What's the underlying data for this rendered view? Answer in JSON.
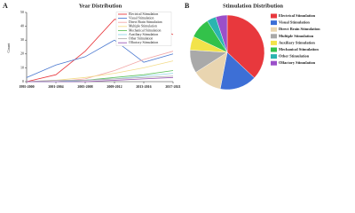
{
  "chart_data": [
    {
      "type": "line",
      "label": "A",
      "title": "Year Distribution",
      "ylabel": "Count",
      "categories": [
        "1995-2000",
        "2001-2004",
        "2005-2008",
        "2009-2012",
        "2013-2016",
        "2017-2021"
      ],
      "ylim": [
        0,
        50
      ],
      "yticks": [
        0,
        10,
        20,
        30,
        40,
        50
      ],
      "legend": "upper right",
      "series": [
        {
          "name": "Electrical Stimulation",
          "color": "#e8383d",
          "values": [
            0,
            5,
            22,
            45,
            44,
            34
          ]
        },
        {
          "name": "Visual Stimulation",
          "color": "#4a78d0",
          "values": [
            3,
            12,
            18,
            30,
            14,
            20
          ]
        },
        {
          "name": "Direct Brain Stimulation",
          "color": "#f2a7a7",
          "values": [
            0,
            0,
            2,
            8,
            16,
            22
          ]
        },
        {
          "name": "Multiple Stimulation",
          "color": "#f3dc8a",
          "values": [
            0,
            1,
            3,
            6,
            10,
            15
          ]
        },
        {
          "name": "Mechanical Stimulation",
          "color": "#5cc05c",
          "values": [
            0,
            0,
            1,
            3,
            5,
            8
          ]
        },
        {
          "name": "Auxiliary Stimulation",
          "color": "#8fd3e8",
          "values": [
            0,
            0,
            1,
            2,
            4,
            6
          ]
        },
        {
          "name": "Other Stimulation",
          "color": "#b0b0b0",
          "values": [
            0,
            1,
            1,
            2,
            3,
            4
          ]
        },
        {
          "name": "Olfactory Stimulation",
          "color": "#9b59b6",
          "values": [
            0,
            0,
            0,
            1,
            2,
            3
          ]
        }
      ]
    },
    {
      "type": "pie",
      "label": "B",
      "title": "Stimulation Distribution",
      "categories": [
        "Electrical Stimulation",
        "Visual Stimulation",
        "Direct Brain Stimulation",
        "Multiple Stimulation",
        "Auxiliary Stimulation",
        "Mechanical Stimulation",
        "Other Stimulation",
        "Olfactory Stimulation"
      ],
      "values": [
        37,
        16,
        13,
        10,
        6,
        9,
        4,
        5
      ],
      "colors": [
        "#e8383d",
        "#3d6fd6",
        "#e9d5b0",
        "#a9a9a9",
        "#f2e34a",
        "#33c24a",
        "#2bb5b0",
        "#9b4fc9"
      ],
      "legend": "right"
    }
  ]
}
